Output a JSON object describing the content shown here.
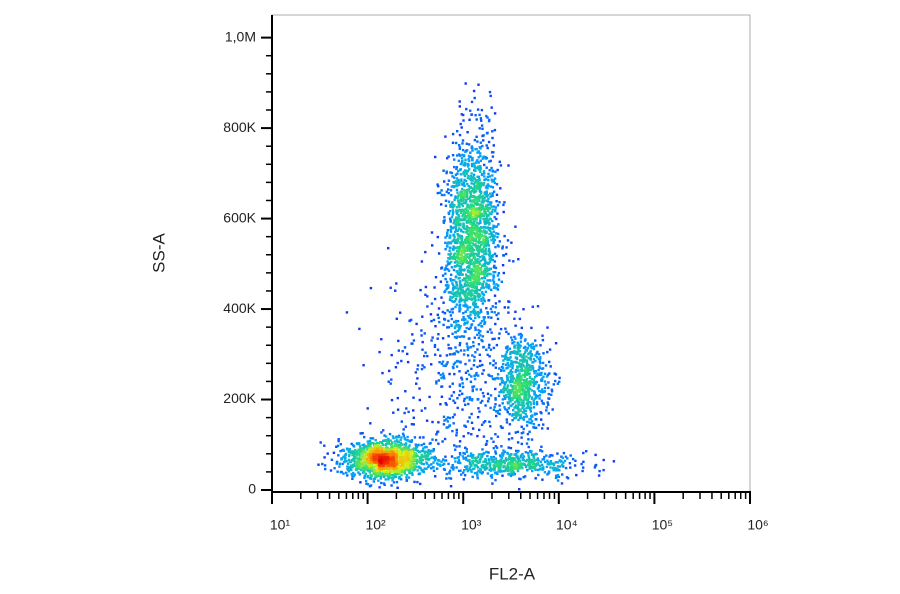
{
  "chart_data": {
    "type": "density-scatter",
    "x_label": "FL2-A",
    "y_label": "SS-A",
    "x_scale": "log",
    "xlim": [
      10,
      1000000
    ],
    "xticks": [
      {
        "value": 10,
        "label": "10¹"
      },
      {
        "value": 100,
        "label": "10²"
      },
      {
        "value": 1000,
        "label": "10³"
      },
      {
        "value": 10000,
        "label": "10⁴"
      },
      {
        "value": 100000,
        "label": "10⁵"
      },
      {
        "value": 1000000,
        "label": "10⁶"
      }
    ],
    "xminorticks": [
      20,
      30,
      40,
      50,
      60,
      70,
      80,
      90,
      200,
      300,
      400,
      500,
      600,
      700,
      800,
      900,
      2000,
      3000,
      4000,
      5000,
      6000,
      7000,
      8000,
      9000,
      20000,
      30000,
      40000,
      50000,
      60000,
      70000,
      80000,
      90000,
      200000,
      300000,
      400000,
      500000,
      600000,
      700000,
      800000,
      900000
    ],
    "ylim": [
      0,
      1050000
    ],
    "yticks": [
      {
        "value": 0,
        "label": "0"
      },
      {
        "value": 200000,
        "label": "200K"
      },
      {
        "value": 400000,
        "label": "400K"
      },
      {
        "value": 600000,
        "label": "600K"
      },
      {
        "value": 800000,
        "label": "800K"
      },
      {
        "value": 1000000,
        "label": "1,0M"
      }
    ],
    "yminorticks": [
      40000,
      80000,
      120000,
      160000,
      240000,
      280000,
      320000,
      360000,
      440000,
      480000,
      520000,
      560000,
      640000,
      680000,
      720000,
      760000,
      840000,
      880000,
      920000,
      960000
    ],
    "populations": [
      {
        "x": 150,
        "y": 70000,
        "x_sd_decades": 0.22,
        "y_sd": 22000,
        "events": 1400
      },
      {
        "x": 1200,
        "y": 560000,
        "x_sd_decades": 0.14,
        "y_sd": 110000,
        "events": 1800
      },
      {
        "x": 4000,
        "y": 240000,
        "x_sd_decades": 0.14,
        "y_sd": 50000,
        "events": 700
      },
      {
        "x": 3000,
        "y": 60000,
        "x_sd_decades": 0.35,
        "y_sd": 15000,
        "events": 500
      },
      {
        "x": 800,
        "y": 250000,
        "x_sd_decades": 0.35,
        "y_sd": 140000,
        "events": 450
      }
    ]
  }
}
